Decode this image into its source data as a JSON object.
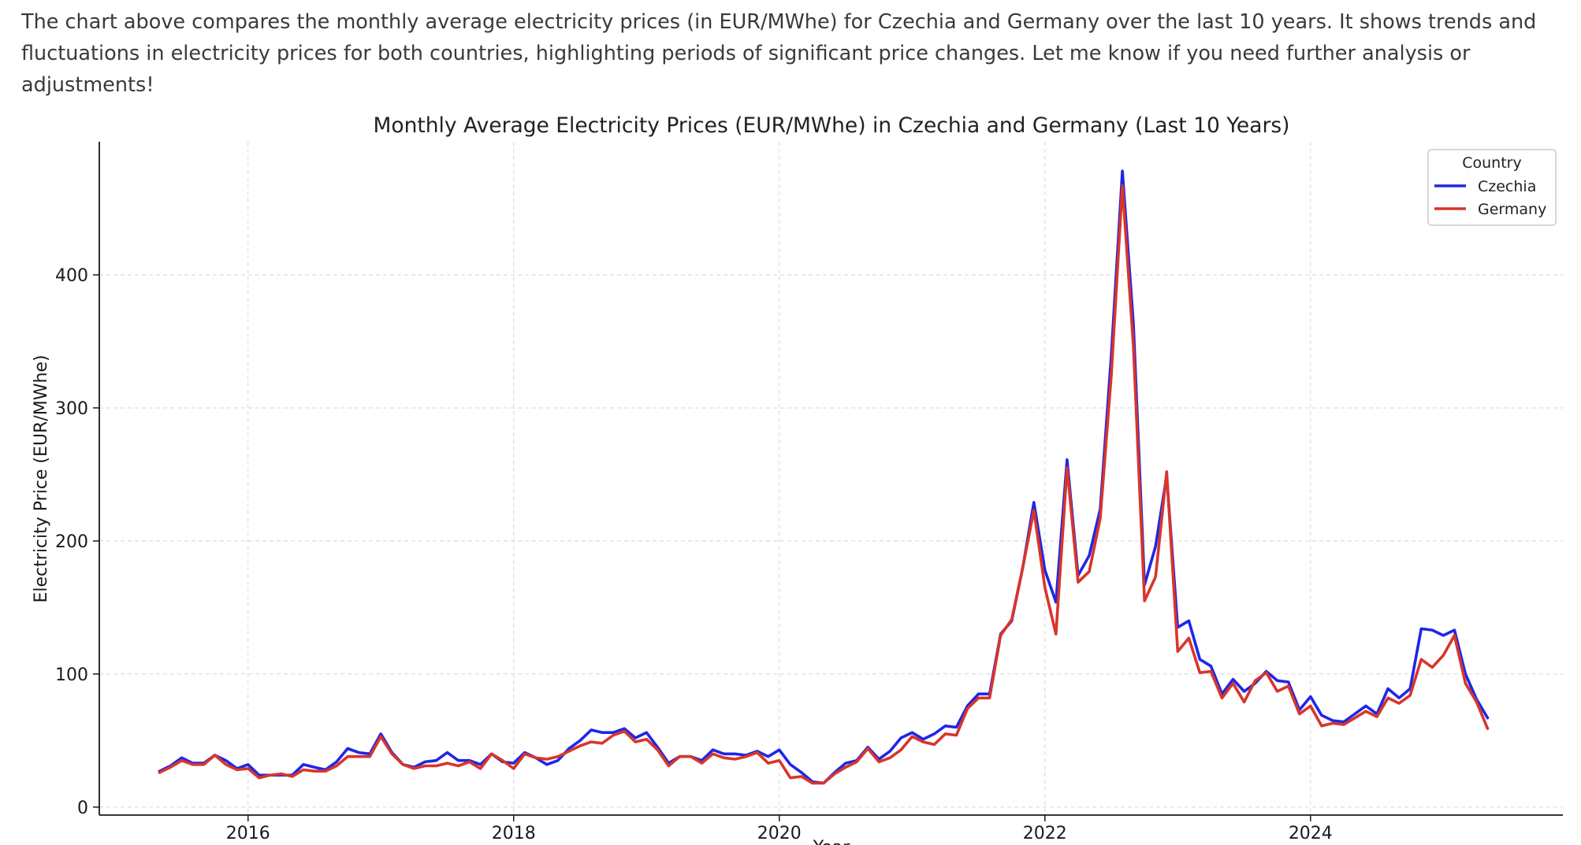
{
  "message": "The chart above compares the monthly average electricity prices (in EUR/MWhe) for Czechia and Germany over the last 10 years. It shows trends and fluctuations in electricity prices for both countries, highlighting periods of significant price changes. Let me know if you need further analysis or adjustments!",
  "colors": {
    "czechia": "#1f27e6",
    "germany": "#d9352a"
  },
  "chart_data": {
    "type": "line",
    "title": "Monthly Average Electricity Prices (EUR/MWhe) in Czechia and Germany (Last 10 Years)",
    "xlabel": "Year",
    "ylabel": "Electricity Price (EUR/MWhe)",
    "x_start": "2015-05",
    "x_frequency": "monthly",
    "xlim": [
      2014.88,
      2025.9
    ],
    "ylim": [
      -6,
      500
    ],
    "xticks": [
      "2016",
      "2018",
      "2020",
      "2022",
      "2024"
    ],
    "yticks": [
      "0",
      "100",
      "200",
      "300",
      "400"
    ],
    "grid": true,
    "legend": {
      "title": "Country",
      "placement": "top-right"
    },
    "series": [
      {
        "name": "Czechia",
        "color": "#1f27e6",
        "values": [
          27,
          31,
          37,
          33,
          33,
          39,
          35,
          29,
          32,
          24,
          24,
          24,
          24,
          32,
          30,
          28,
          34,
          44,
          41,
          40,
          55,
          41,
          32,
          30,
          34,
          35,
          41,
          35,
          35,
          32,
          40,
          34,
          33,
          41,
          37,
          32,
          35,
          44,
          50,
          58,
          56,
          56,
          59,
          52,
          56,
          45,
          33,
          38,
          38,
          35,
          43,
          40,
          40,
          39,
          42,
          38,
          43,
          32,
          26,
          19,
          18,
          26,
          33,
          35,
          45,
          36,
          42,
          52,
          56,
          51,
          55,
          61,
          60,
          76,
          85,
          85,
          130,
          140,
          180,
          229,
          178,
          154,
          261,
          174,
          189,
          224,
          340,
          478,
          363,
          167,
          196,
          249,
          135,
          140,
          111,
          106,
          85,
          96,
          87,
          93,
          102,
          95,
          94,
          73,
          83,
          69,
          65,
          64,
          70,
          76,
          70,
          89,
          82,
          89,
          134,
          133,
          129,
          133,
          100,
          81,
          67
        ]
      },
      {
        "name": "Germany",
        "color": "#d9352a",
        "values": [
          26,
          30,
          35,
          32,
          32,
          39,
          32,
          28,
          29,
          22,
          24,
          25,
          23,
          28,
          27,
          27,
          31,
          38,
          38,
          38,
          53,
          40,
          32,
          29,
          31,
          31,
          33,
          31,
          34,
          29,
          40,
          35,
          29,
          40,
          37,
          36,
          38,
          42,
          46,
          49,
          48,
          54,
          57,
          49,
          51,
          43,
          31,
          38,
          38,
          33,
          40,
          37,
          36,
          38,
          41,
          33,
          35,
          22,
          23,
          18,
          18,
          25,
          30,
          34,
          44,
          34,
          37,
          43,
          53,
          49,
          47,
          55,
          54,
          74,
          82,
          82,
          129,
          141,
          180,
          223,
          165,
          130,
          255,
          169,
          177,
          217,
          325,
          467,
          346,
          155,
          173,
          252,
          117,
          127,
          101,
          102,
          82,
          93,
          79,
          95,
          101,
          87,
          91,
          70,
          76,
          61,
          63,
          62,
          67,
          72,
          68,
          82,
          78,
          84,
          111,
          105,
          114,
          129,
          93,
          79,
          59
        ]
      }
    ]
  }
}
